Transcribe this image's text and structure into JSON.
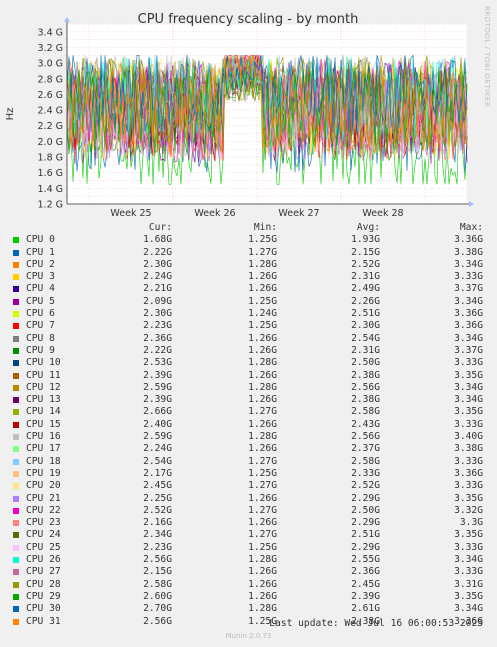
{
  "chart_data": {
    "type": "line",
    "title": "CPU frequency scaling - by month",
    "ylabel": "Hz",
    "y_ticks": [
      "1.2 G",
      "1.4 G",
      "1.6 G",
      "1.8 G",
      "2.0 G",
      "2.2 G",
      "2.4 G",
      "2.6 G",
      "2.8 G",
      "3.0 G",
      "3.2 G",
      "3.4 G"
    ],
    "ylim": [
      1.2,
      3.5
    ],
    "x_ticks": [
      "Week 25",
      "Week 26",
      "Week 27",
      "Week 28"
    ],
    "grid": true,
    "side_label": "RRDTOOL / TOBI OETIKER",
    "legend_headers": [
      "Cur:",
      "Min:",
      "Avg:",
      "Max:"
    ],
    "series": [
      {
        "name": "CPU 0",
        "color": "#00cc00",
        "cur": "1.68G",
        "min": "1.25G",
        "avg": "1.93G",
        "max": "3.36G"
      },
      {
        "name": "CPU 1",
        "color": "#0066b3",
        "cur": "2.22G",
        "min": "1.27G",
        "avg": "2.15G",
        "max": "3.38G"
      },
      {
        "name": "CPU 2",
        "color": "#ff8000",
        "cur": "2.30G",
        "min": "1.28G",
        "avg": "2.52G",
        "max": "3.34G"
      },
      {
        "name": "CPU 3",
        "color": "#ffcc00",
        "cur": "2.24G",
        "min": "1.26G",
        "avg": "2.31G",
        "max": "3.33G"
      },
      {
        "name": "CPU 4",
        "color": "#330099",
        "cur": "2.21G",
        "min": "1.26G",
        "avg": "2.49G",
        "max": "3.37G"
      },
      {
        "name": "CPU 5",
        "color": "#990099",
        "cur": "2.09G",
        "min": "1.25G",
        "avg": "2.26G",
        "max": "3.34G"
      },
      {
        "name": "CPU 6",
        "color": "#ccff00",
        "cur": "2.30G",
        "min": "1.24G",
        "avg": "2.51G",
        "max": "3.36G"
      },
      {
        "name": "CPU 7",
        "color": "#ff0000",
        "cur": "2.23G",
        "min": "1.25G",
        "avg": "2.30G",
        "max": "3.36G"
      },
      {
        "name": "CPU 8",
        "color": "#808080",
        "cur": "2.36G",
        "min": "1.26G",
        "avg": "2.54G",
        "max": "3.34G"
      },
      {
        "name": "CPU 9",
        "color": "#008f00",
        "cur": "2.22G",
        "min": "1.26G",
        "avg": "2.31G",
        "max": "3.37G"
      },
      {
        "name": "CPU 10",
        "color": "#00487d",
        "cur": "2.53G",
        "min": "1.28G",
        "avg": "2.50G",
        "max": "3.33G"
      },
      {
        "name": "CPU 11",
        "color": "#b35a00",
        "cur": "2.39G",
        "min": "1.26G",
        "avg": "2.38G",
        "max": "3.35G"
      },
      {
        "name": "CPU 12",
        "color": "#b38f00",
        "cur": "2.59G",
        "min": "1.28G",
        "avg": "2.56G",
        "max": "3.34G"
      },
      {
        "name": "CPU 13",
        "color": "#6b006b",
        "cur": "2.39G",
        "min": "1.26G",
        "avg": "2.38G",
        "max": "3.34G"
      },
      {
        "name": "CPU 14",
        "color": "#8fb300",
        "cur": "2.66G",
        "min": "1.27G",
        "avg": "2.58G",
        "max": "3.35G"
      },
      {
        "name": "CPU 15",
        "color": "#b30000",
        "cur": "2.40G",
        "min": "1.26G",
        "avg": "2.43G",
        "max": "3.33G"
      },
      {
        "name": "CPU 16",
        "color": "#bebebe",
        "cur": "2.59G",
        "min": "1.28G",
        "avg": "2.56G",
        "max": "3.40G"
      },
      {
        "name": "CPU 17",
        "color": "#80ff80",
        "cur": "2.24G",
        "min": "1.26G",
        "avg": "2.37G",
        "max": "3.38G"
      },
      {
        "name": "CPU 18",
        "color": "#80c9ff",
        "cur": "2.54G",
        "min": "1.27G",
        "avg": "2.58G",
        "max": "3.33G"
      },
      {
        "name": "CPU 19",
        "color": "#ffc080",
        "cur": "2.17G",
        "min": "1.25G",
        "avg": "2.33G",
        "max": "3.36G"
      },
      {
        "name": "CPU 20",
        "color": "#ffe680",
        "cur": "2.45G",
        "min": "1.27G",
        "avg": "2.52G",
        "max": "3.33G"
      },
      {
        "name": "CPU 21",
        "color": "#aa80ff",
        "cur": "2.25G",
        "min": "1.26G",
        "avg": "2.29G",
        "max": "3.35G"
      },
      {
        "name": "CPU 22",
        "color": "#ee00cc",
        "cur": "2.52G",
        "min": "1.27G",
        "avg": "2.50G",
        "max": "3.32G"
      },
      {
        "name": "CPU 23",
        "color": "#ff8080",
        "cur": "2.16G",
        "min": "1.26G",
        "avg": "2.29G",
        "max": "3.3G"
      },
      {
        "name": "CPU 24",
        "color": "#666600",
        "cur": "2.34G",
        "min": "1.27G",
        "avg": "2.51G",
        "max": "3.35G"
      },
      {
        "name": "CPU 25",
        "color": "#ffbfff",
        "cur": "2.23G",
        "min": "1.25G",
        "avg": "2.29G",
        "max": "3.33G"
      },
      {
        "name": "CPU 26",
        "color": "#00ffcc",
        "cur": "2.56G",
        "min": "1.28G",
        "avg": "2.55G",
        "max": "3.34G"
      },
      {
        "name": "CPU 27",
        "color": "#cc6699",
        "cur": "2.15G",
        "min": "1.26G",
        "avg": "2.36G",
        "max": "3.33G"
      },
      {
        "name": "CPU 28",
        "color": "#999900",
        "cur": "2.58G",
        "min": "1.26G",
        "avg": "2.45G",
        "max": "3.31G"
      },
      {
        "name": "CPU 29",
        "color": "#00aa00",
        "cur": "2.60G",
        "min": "1.26G",
        "avg": "2.39G",
        "max": "3.35G"
      },
      {
        "name": "CPU 30",
        "color": "#0066b3",
        "cur": "2.70G",
        "min": "1.28G",
        "avg": "2.61G",
        "max": "3.34G"
      },
      {
        "name": "CPU 31",
        "color": "#ff8000",
        "cur": "2.56G",
        "min": "1.25G",
        "avg": "2.38G",
        "max": "3.36G"
      }
    ]
  },
  "footer": {
    "last_update": "Last update: Wed Jul 16 06:00:53 2025",
    "munin_version": "Munin 2.0.73"
  }
}
